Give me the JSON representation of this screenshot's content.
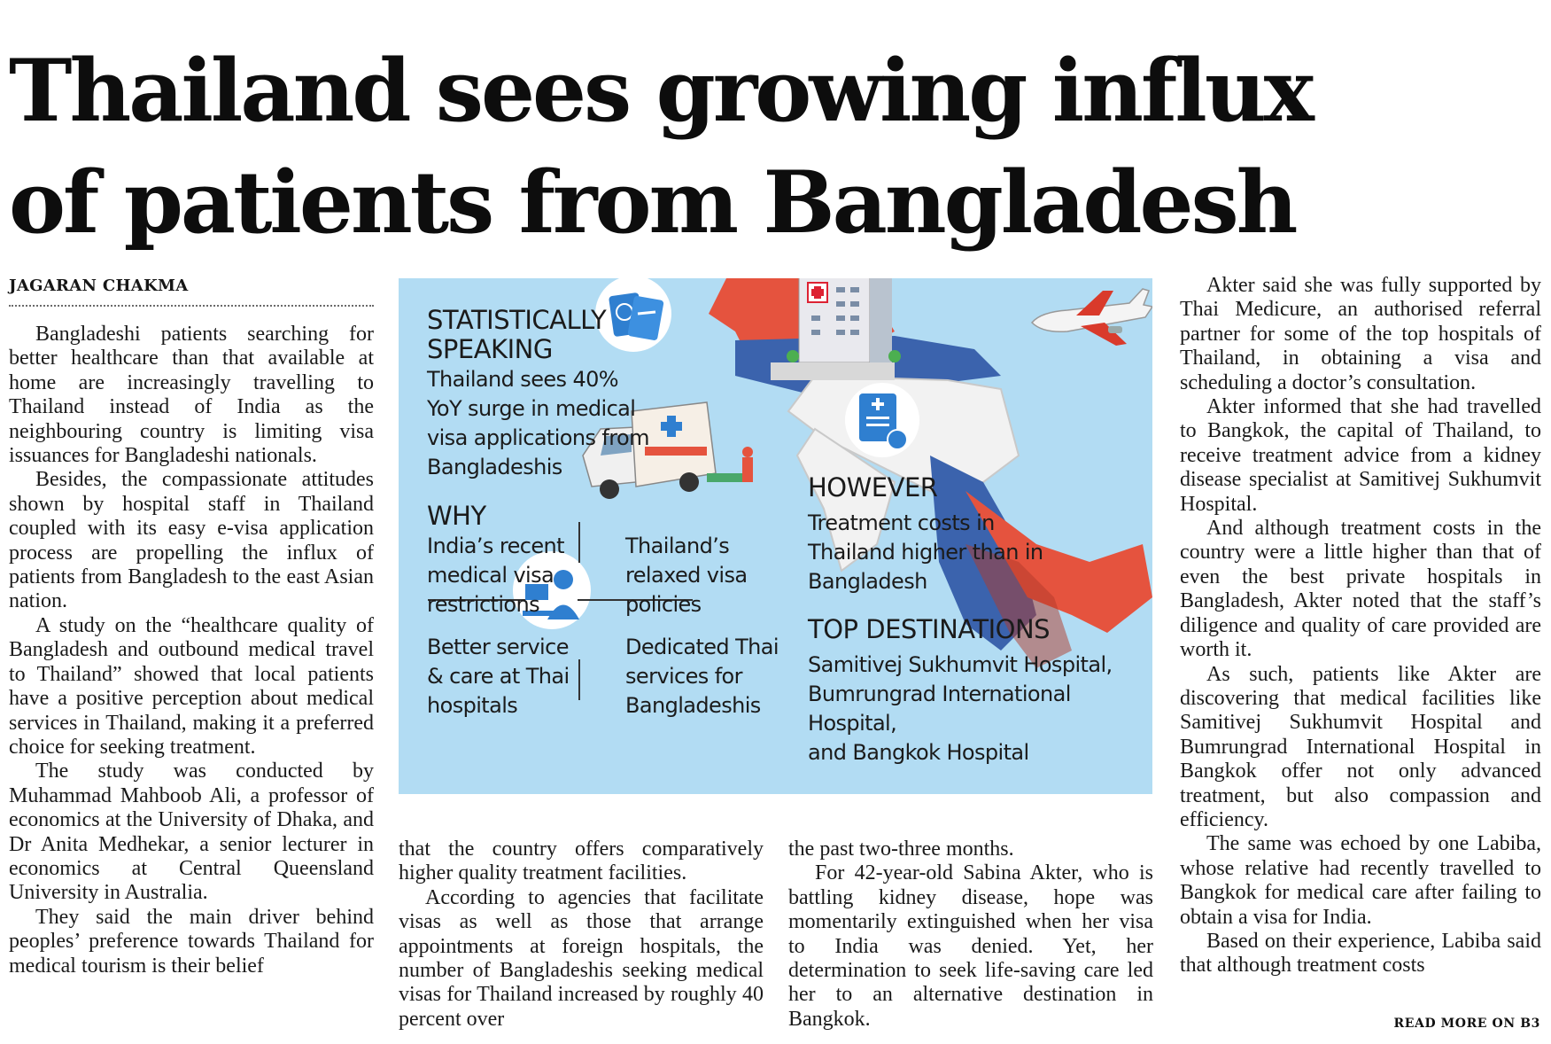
{
  "headline": {
    "line1": "Thailand sees growing influx",
    "line2": "of patients from Bangladesh"
  },
  "byline": "JAGARAN CHAKMA",
  "columns": {
    "col1": [
      "Bangladeshi patients searching for better healthcare than that available at home are increasingly travelling to Thailand instead of India as the neighbouring country is limiting visa issuances for Bangladeshi nationals.",
      "Besides, the compassionate attitudes shown by hospital staff in Thailand coupled with its easy e-visa application process are propelling the influx of patients from Bangladesh to the east Asian nation.",
      "A study on the “healthcare quality of Bangladesh and outbound medical travel to Thailand” showed that local patients have a positive perception about medical services in Thailand, making it a preferred choice for seeking treatment.",
      "The study was conducted by Muhammad Mahboob Ali, a professor of economics at the University of Dhaka, and Dr Anita Medhekar, a senior lecturer in economics at Central Queensland University in Australia.",
      "They said the main driver behind peoples’ preference towards Thailand for medical tourism is their belief"
    ],
    "col2": [
      "that the country offers comparatively higher quality treatment facilities.",
      "According to agencies that facilitate visas as well as those that arrange appointments at foreign hospitals, the number of Bangladeshis seeking medical visas for Thailand increased by roughly 40 percent over"
    ],
    "col3": [
      "the past two-three months.",
      "For 42-year-old Sabina Akter, who is battling kidney disease, hope was momentarily extinguished when her visa to India was denied. Yet, her determination to seek life-saving care led her to an alternative destination in Bangkok."
    ],
    "col4": [
      "Akter said she was fully supported by Thai Medicure, an authorised referral partner for some of the top hospitals of Thailand, in obtaining a visa and scheduling a doctor’s consultation.",
      "Akter informed that she had travelled to Bangkok, the capital of Thailand, to receive treatment advice from a kidney disease specialist at Samitivej Sukhumvit Hospital.",
      "And although treatment costs in the country were a little higher than that of even the best private hospitals in Bangladesh, Akter noted that the staff’s diligence and quality of care provided are worth it.",
      "As such, patients like Akter are discovering that medical facilities like Samitivej Sukhumvit Hospital and Bumrungrad International Hospital in Bangkok offer not only advanced treatment, but also compassion and efficiency.",
      "The same was echoed by one Labiba, whose relative had recently travelled to Bangkok for medical care after failing to obtain a visa for India.",
      "Based on their experience, Labiba said that although treatment costs"
    ]
  },
  "read_more": "READ MORE ON B3",
  "infographic": {
    "stat_heading_1": "STATISTICALLY",
    "stat_heading_2": "SPEAKING",
    "stat_text": [
      "Thailand sees 40%",
      "YoY surge in medical",
      "visa applications from",
      "Bangladeshis"
    ],
    "why_heading": "WHY",
    "why_1": [
      "India’s recent",
      "medical visa",
      "restrictions"
    ],
    "why_2": [
      "Thailand’s",
      "relaxed visa",
      "policies"
    ],
    "why_3": [
      "Better service",
      "& care at Thai",
      "hospitals"
    ],
    "why_4": [
      "Dedicated Thai",
      "services for",
      "Bangladeshis"
    ],
    "however_heading": "HOWEVER",
    "however_text": [
      "Treatment costs in",
      "Thailand higher than in",
      "Bangladesh"
    ],
    "top_heading": "TOP DESTINATIONS",
    "top_text": [
      "Samitivej Sukhumvit Hospital,",
      "Bumrungrad International Hospital,",
      "and Bangkok Hospital"
    ],
    "colors": {
      "panel": "#b2dcf3",
      "map_red": "#e5533e",
      "map_blue": "#3b63ad",
      "map_white": "#f2f2f2",
      "icon_blue": "#2f7fd0"
    },
    "icons": [
      "passport-icon",
      "medical-bill-icon",
      "doctor-icon",
      "hospital-building-icon",
      "ambulance-icon",
      "airplane-icon"
    ]
  }
}
